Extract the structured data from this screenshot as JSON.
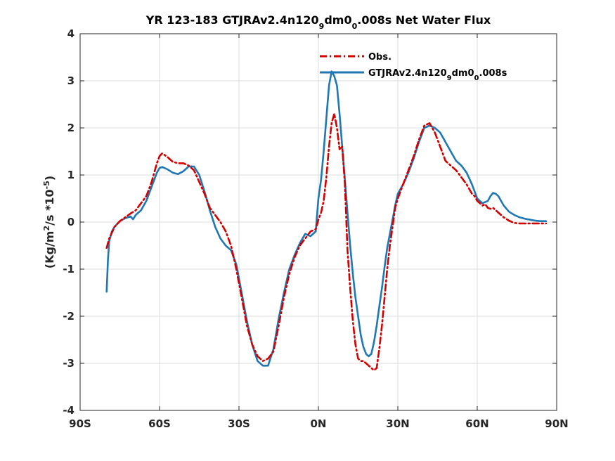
{
  "chart_data": {
    "type": "line",
    "title": {
      "prefix": "YR 123-183 GTJRAv2.4n120",
      "sub1": "9",
      "mid": "dm0",
      "sub2": "0",
      "suffix": ".008s  Net Water Flux"
    },
    "ylabel": {
      "prefix": "(Kg/m",
      "sup1": "2",
      "mid": "/s *10",
      "sup2": "-5",
      "suffix": ")"
    },
    "xlim": [
      -90,
      90
    ],
    "ylim": [
      -4,
      4
    ],
    "xticks": [
      -90,
      -60,
      -30,
      0,
      30,
      60,
      90
    ],
    "xtick_labels": [
      "90S",
      "60S",
      "30S",
      "0N",
      "30N",
      "60N",
      "90N"
    ],
    "yticks": [
      -4,
      -3,
      -2,
      -1,
      0,
      1,
      2,
      3,
      4
    ],
    "ytick_labels": [
      "-4",
      "-3",
      "-2",
      "-1",
      "0",
      "1",
      "2",
      "3",
      "4"
    ],
    "grid": true,
    "legend_position": "top-right",
    "series": [
      {
        "name": "Obs.",
        "color": "#d40000",
        "style": "dashdot",
        "x": [
          -80,
          -79,
          -77,
          -75,
          -73,
          -71,
          -69,
          -67,
          -65,
          -63,
          -61,
          -60,
          -59,
          -57,
          -55,
          -53,
          -51,
          -49,
          -47,
          -45,
          -43,
          -41,
          -39,
          -37,
          -35,
          -33,
          -31,
          -29,
          -27,
          -25,
          -23,
          -21,
          -19,
          -17,
          -15,
          -13,
          -11,
          -9,
          -7,
          -5,
          -3,
          -1,
          0,
          1,
          2,
          3,
          4,
          5,
          6,
          7,
          8,
          9,
          10,
          11,
          12,
          13,
          14,
          15,
          16,
          17,
          18,
          19,
          20,
          21,
          22,
          23,
          24,
          25,
          26,
          27,
          28,
          29,
          30,
          32,
          34,
          36,
          38,
          40,
          42,
          44,
          46,
          48,
          50,
          52,
          54,
          56,
          58,
          59,
          60,
          61,
          62,
          63,
          64,
          65,
          66,
          67,
          68,
          70,
          72,
          74,
          76,
          78,
          80,
          82,
          84,
          86
        ],
        "y": [
          -0.55,
          -0.35,
          -0.1,
          0.02,
          0.1,
          0.18,
          0.25,
          0.4,
          0.55,
          0.85,
          1.25,
          1.4,
          1.46,
          1.38,
          1.28,
          1.25,
          1.25,
          1.2,
          1.1,
          0.85,
          0.6,
          0.3,
          0.15,
          0.0,
          -0.2,
          -0.5,
          -1.0,
          -1.6,
          -2.2,
          -2.6,
          -2.85,
          -2.95,
          -2.9,
          -2.75,
          -2.2,
          -1.6,
          -1.1,
          -0.75,
          -0.5,
          -0.35,
          -0.2,
          -0.15,
          0.05,
          0.2,
          0.45,
          0.95,
          1.6,
          2.1,
          2.3,
          2.0,
          1.55,
          1.6,
          0.8,
          -0.6,
          -1.4,
          -2.1,
          -2.6,
          -2.9,
          -2.95,
          -2.95,
          -3.0,
          -3.05,
          -3.1,
          -3.15,
          -3.1,
          -2.7,
          -2.2,
          -1.6,
          -1.0,
          -0.5,
          -0.1,
          0.3,
          0.5,
          0.8,
          1.1,
          1.4,
          1.75,
          2.05,
          2.1,
          1.9,
          1.6,
          1.3,
          1.2,
          1.1,
          0.95,
          0.8,
          0.6,
          0.55,
          0.45,
          0.4,
          0.35,
          0.38,
          0.3,
          0.28,
          0.3,
          0.25,
          0.2,
          0.1,
          0.03,
          -0.02,
          -0.03,
          -0.03,
          -0.03,
          -0.03,
          -0.03,
          -0.03
        ]
      },
      {
        "name": "GTJRAv2.4n120 9 dm0 0 .008s",
        "color": "#1f77b4",
        "style": "solid",
        "x": [
          -80,
          -79.5,
          -79,
          -78,
          -77,
          -75,
          -73,
          -71,
          -70,
          -69,
          -67,
          -65,
          -63,
          -61,
          -60,
          -59,
          -57,
          -55,
          -53,
          -51,
          -49,
          -47,
          -45,
          -43,
          -41,
          -39,
          -37,
          -35,
          -33,
          -31,
          -29,
          -27,
          -25,
          -23,
          -21,
          -19,
          -17,
          -15,
          -13,
          -11,
          -9,
          -7,
          -5,
          -3,
          -1,
          0,
          1,
          2,
          3,
          4,
          5,
          6,
          7,
          8,
          9,
          10,
          11,
          12,
          13,
          14,
          15,
          16,
          17,
          18,
          19,
          20,
          21,
          22,
          23,
          24,
          25,
          26,
          27,
          28,
          29,
          30,
          32,
          34,
          36,
          38,
          40,
          42,
          44,
          46,
          48,
          50,
          52,
          54,
          56,
          58,
          60,
          62,
          64,
          65,
          66,
          67,
          68,
          69,
          70,
          72,
          74,
          76,
          78,
          80,
          82,
          84,
          86
        ],
        "y": [
          -1.48,
          -0.8,
          -0.4,
          -0.2,
          -0.1,
          0.02,
          0.08,
          0.12,
          0.06,
          0.15,
          0.25,
          0.45,
          0.75,
          1.05,
          1.15,
          1.17,
          1.12,
          1.05,
          1.02,
          1.08,
          1.18,
          1.18,
          1.0,
          0.65,
          0.25,
          -0.1,
          -0.35,
          -0.5,
          -0.6,
          -0.9,
          -1.5,
          -2.1,
          -2.6,
          -2.95,
          -3.05,
          -3.05,
          -2.7,
          -2.05,
          -1.5,
          -1.0,
          -0.7,
          -0.45,
          -0.25,
          -0.3,
          -0.2,
          0.5,
          0.9,
          1.5,
          2.2,
          2.9,
          3.2,
          3.1,
          2.9,
          2.3,
          1.6,
          0.9,
          0.2,
          -0.5,
          -1.1,
          -1.6,
          -2.0,
          -2.4,
          -2.65,
          -2.8,
          -2.85,
          -2.8,
          -2.55,
          -2.2,
          -1.8,
          -1.4,
          -0.95,
          -0.55,
          -0.25,
          0.05,
          0.35,
          0.6,
          0.8,
          1.05,
          1.35,
          1.7,
          2.0,
          2.05,
          2.0,
          1.9,
          1.7,
          1.5,
          1.3,
          1.2,
          1.05,
          0.8,
          0.5,
          0.4,
          0.45,
          0.55,
          0.62,
          0.6,
          0.55,
          0.45,
          0.35,
          0.22,
          0.15,
          0.1,
          0.07,
          0.05,
          0.03,
          0.02,
          0.02
        ]
      }
    ],
    "legend": {
      "obs_label": "Obs.",
      "model_prefix": "GTJRAv2.4n120",
      "model_sub1": "9",
      "model_mid": "dm0",
      "model_sub2": "0",
      "model_suffix": ".008s"
    }
  }
}
